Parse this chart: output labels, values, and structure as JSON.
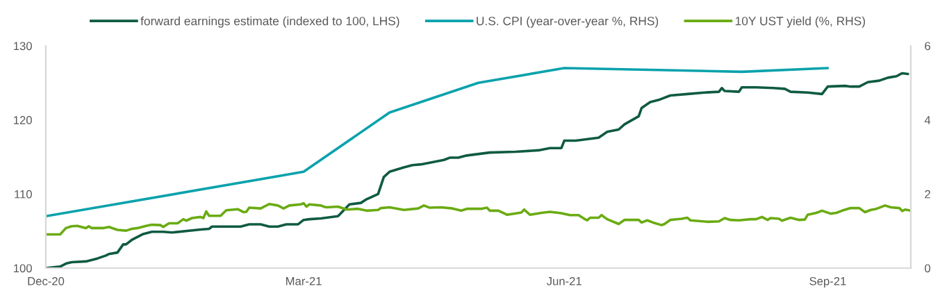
{
  "chart_data": {
    "type": "line",
    "xlim": [
      "2020-12-31",
      "2021-10-29"
    ],
    "xticks": [
      {
        "value": "2020-12-31",
        "label": "Dec-20"
      },
      {
        "value": "2021-03-31",
        "label": "Mar-21"
      },
      {
        "value": "2021-06-30",
        "label": "Jun-21"
      },
      {
        "value": "2021-09-30",
        "label": "Sep-21"
      }
    ],
    "ylim": [
      100,
      130
    ],
    "yticks": [
      100,
      110,
      120,
      130
    ],
    "y2lim": [
      0,
      6
    ],
    "y2ticks": [
      0,
      2,
      4,
      6
    ],
    "legend": "top",
    "line_style": "solid",
    "series": [
      {
        "name": "forward earnings estimate (indexed to 100, LHS)",
        "color": "#0f5a43",
        "axis": "y",
        "x": [
          "2020-12-31",
          "2021-01-05",
          "2021-01-07",
          "2021-01-09",
          "2021-01-14",
          "2021-01-18",
          "2021-01-21",
          "2021-01-22",
          "2021-01-25",
          "2021-01-27",
          "2021-01-28",
          "2021-01-30",
          "2021-02-01",
          "2021-02-03",
          "2021-02-06",
          "2021-02-10",
          "2021-02-13",
          "2021-02-23",
          "2021-02-26",
          "2021-02-27",
          "2021-03-06",
          "2021-03-09",
          "2021-03-12",
          "2021-03-16",
          "2021-03-19",
          "2021-03-22",
          "2021-03-25",
          "2021-03-29",
          "2021-03-31",
          "2021-04-02",
          "2021-04-06",
          "2021-04-12",
          "2021-04-16",
          "2021-04-20",
          "2021-04-22",
          "2021-04-26",
          "2021-04-28",
          "2021-04-30",
          "2021-05-05",
          "2021-05-08",
          "2021-05-11",
          "2021-05-19",
          "2021-05-21",
          "2021-05-24",
          "2021-05-27",
          "2021-06-04",
          "2021-06-13",
          "2021-06-21",
          "2021-06-25",
          "2021-06-29",
          "2021-06-30",
          "2021-07-04",
          "2021-07-12",
          "2021-07-15",
          "2021-07-19",
          "2021-07-21",
          "2021-07-26",
          "2021-07-27",
          "2021-07-30",
          "2021-08-02",
          "2021-08-06",
          "2021-08-12",
          "2021-08-18",
          "2021-08-23",
          "2021-08-24",
          "2021-08-25",
          "2021-08-30",
          "2021-08-31",
          "2021-09-05",
          "2021-09-11",
          "2021-09-15",
          "2021-09-17",
          "2021-09-23",
          "2021-09-28",
          "2021-09-30",
          "2021-10-06",
          "2021-10-08",
          "2021-10-11",
          "2021-10-14",
          "2021-10-18",
          "2021-10-21",
          "2021-10-24",
          "2021-10-26",
          "2021-10-28"
        ],
        "values": [
          100.0,
          100.2,
          100.6,
          100.8,
          100.9,
          101.3,
          101.7,
          101.9,
          102.1,
          103.2,
          103.2,
          103.8,
          104.2,
          104.6,
          104.9,
          104.9,
          104.8,
          105.2,
          105.3,
          105.6,
          105.6,
          105.6,
          105.9,
          105.9,
          105.6,
          105.6,
          105.9,
          105.9,
          106.5,
          106.6,
          106.7,
          107.0,
          108.6,
          108.8,
          109.3,
          110.0,
          112.3,
          113.0,
          113.6,
          113.9,
          114.0,
          114.6,
          114.9,
          114.9,
          115.2,
          115.6,
          115.7,
          115.9,
          116.2,
          116.2,
          117.2,
          117.2,
          117.6,
          118.4,
          118.7,
          119.4,
          120.5,
          121.6,
          122.4,
          122.7,
          123.3,
          123.5,
          123.7,
          123.8,
          124.3,
          123.9,
          123.8,
          124.4,
          124.4,
          124.3,
          124.2,
          123.8,
          123.7,
          123.5,
          124.5,
          124.6,
          124.5,
          124.5,
          125.1,
          125.3,
          125.7,
          125.9,
          126.3,
          126.2
        ]
      },
      {
        "name": "U.S. CPI (year-over-year %, RHS)",
        "color": "#0aa2ac",
        "axis": "y2",
        "x": [
          "2020-12-31",
          "2021-03-31",
          "2021-04-30",
          "2021-05-31",
          "2021-06-30",
          "2021-08-31",
          "2021-09-30"
        ],
        "values": [
          1.4,
          2.6,
          4.2,
          5.0,
          5.4,
          5.3,
          5.4
        ]
      },
      {
        "name": "10Y UST yield (%, RHS)",
        "color": "#6aab12",
        "axis": "y2",
        "x": [
          "2020-12-31",
          "2021-01-05",
          "2021-01-07",
          "2021-01-09",
          "2021-01-11",
          "2021-01-14",
          "2021-01-15",
          "2021-01-16",
          "2021-01-20",
          "2021-01-22",
          "2021-01-25",
          "2021-01-28",
          "2021-01-30",
          "2021-02-01",
          "2021-02-04",
          "2021-02-06",
          "2021-02-09",
          "2021-02-10",
          "2021-02-12",
          "2021-02-15",
          "2021-02-17",
          "2021-02-18",
          "2021-02-20",
          "2021-02-23",
          "2021-02-24",
          "2021-02-25",
          "2021-02-26",
          "2021-03-02",
          "2021-03-04",
          "2021-03-08",
          "2021-03-10",
          "2021-03-11",
          "2021-03-12",
          "2021-03-16",
          "2021-03-19",
          "2021-03-22",
          "2021-03-24",
          "2021-03-26",
          "2021-03-30",
          "2021-03-31",
          "2021-04-01",
          "2021-04-02",
          "2021-04-06",
          "2021-04-07",
          "2021-04-08",
          "2021-04-12",
          "2021-04-15",
          "2021-04-19",
          "2021-04-22",
          "2021-04-26",
          "2021-04-27",
          "2021-04-30",
          "2021-05-05",
          "2021-05-10",
          "2021-05-12",
          "2021-05-14",
          "2021-05-18",
          "2021-05-22",
          "2021-05-25",
          "2021-05-27",
          "2021-06-01",
          "2021-06-03",
          "2021-06-04",
          "2021-06-07",
          "2021-06-10",
          "2021-06-15",
          "2021-06-16",
          "2021-06-18",
          "2021-06-22",
          "2021-06-25",
          "2021-06-29",
          "2021-07-02",
          "2021-07-05",
          "2021-07-07",
          "2021-07-08",
          "2021-07-09",
          "2021-07-12",
          "2021-07-13",
          "2021-07-15",
          "2021-07-19",
          "2021-07-21",
          "2021-07-26",
          "2021-07-27",
          "2021-07-29",
          "2021-07-31",
          "2021-08-03",
          "2021-08-04",
          "2021-08-06",
          "2021-08-10",
          "2021-08-12",
          "2021-08-13",
          "2021-08-19",
          "2021-08-23",
          "2021-08-25",
          "2021-08-27",
          "2021-08-30",
          "2021-09-03",
          "2021-09-05",
          "2021-09-07",
          "2021-09-09",
          "2021-09-10",
          "2021-09-13",
          "2021-09-14",
          "2021-09-17",
          "2021-09-20",
          "2021-09-22",
          "2021-09-23",
          "2021-09-26",
          "2021-09-28",
          "2021-10-01",
          "2021-10-03",
          "2021-10-05",
          "2021-10-08",
          "2021-10-11",
          "2021-10-13",
          "2021-10-15",
          "2021-10-17",
          "2021-10-20",
          "2021-10-22",
          "2021-10-25",
          "2021-10-26",
          "2021-10-27",
          "2021-10-29"
        ],
        "values": [
          0.91,
          0.91,
          1.08,
          1.13,
          1.14,
          1.08,
          1.13,
          1.08,
          1.08,
          1.11,
          1.03,
          1.01,
          1.06,
          1.08,
          1.14,
          1.17,
          1.16,
          1.11,
          1.21,
          1.21,
          1.32,
          1.28,
          1.35,
          1.38,
          1.35,
          1.53,
          1.41,
          1.41,
          1.56,
          1.59,
          1.51,
          1.52,
          1.63,
          1.61,
          1.73,
          1.69,
          1.61,
          1.69,
          1.72,
          1.75,
          1.66,
          1.72,
          1.69,
          1.66,
          1.64,
          1.66,
          1.58,
          1.6,
          1.55,
          1.57,
          1.62,
          1.64,
          1.57,
          1.61,
          1.69,
          1.63,
          1.64,
          1.61,
          1.55,
          1.6,
          1.6,
          1.63,
          1.55,
          1.55,
          1.44,
          1.5,
          1.58,
          1.44,
          1.49,
          1.52,
          1.48,
          1.43,
          1.43,
          1.33,
          1.29,
          1.36,
          1.36,
          1.43,
          1.32,
          1.19,
          1.3,
          1.3,
          1.23,
          1.29,
          1.23,
          1.16,
          1.19,
          1.3,
          1.33,
          1.36,
          1.29,
          1.25,
          1.26,
          1.35,
          1.3,
          1.29,
          1.32,
          1.32,
          1.38,
          1.3,
          1.35,
          1.33,
          1.28,
          1.36,
          1.3,
          1.31,
          1.44,
          1.49,
          1.55,
          1.47,
          1.49,
          1.55,
          1.62,
          1.62,
          1.51,
          1.57,
          1.6,
          1.69,
          1.64,
          1.62,
          1.54,
          1.58,
          1.55
        ]
      }
    ]
  }
}
